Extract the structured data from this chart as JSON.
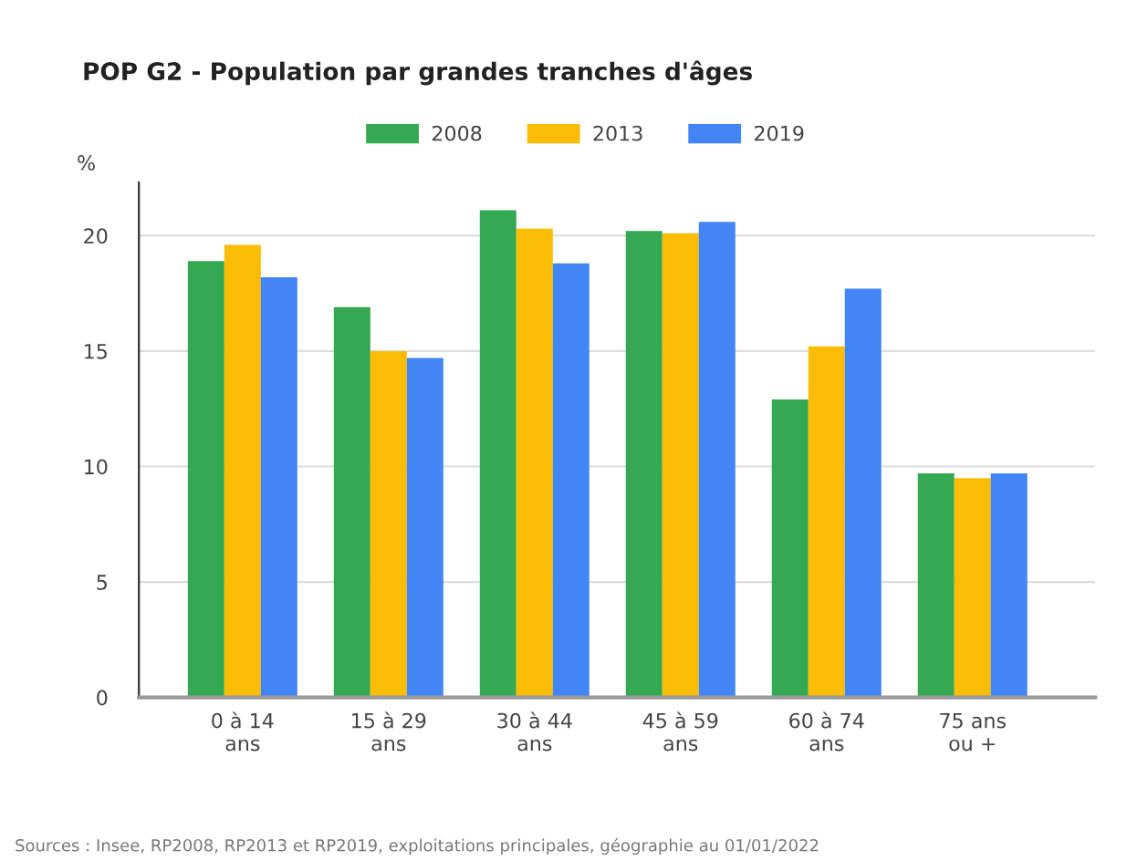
{
  "chart_data": {
    "type": "bar",
    "title": "POP G2 - Population par grandes tranches d'âges",
    "ylabel": "%",
    "categories": [
      "0 à 14\nans",
      "15 à 29\nans",
      "30 à 44\nans",
      "45 à 59\nans",
      "60 à 74\nans",
      "75 ans\nou +"
    ],
    "series": [
      {
        "name": "2008",
        "color": "#34a853",
        "values": [
          18.9,
          16.9,
          21.1,
          20.2,
          12.9,
          9.7
        ]
      },
      {
        "name": "2013",
        "color": "#fbbc04",
        "values": [
          19.6,
          15.0,
          20.3,
          20.1,
          15.2,
          9.5
        ]
      },
      {
        "name": "2019",
        "color": "#4285f4",
        "values": [
          18.2,
          14.7,
          18.8,
          20.6,
          17.7,
          9.7
        ]
      }
    ],
    "ylim": [
      0,
      22.3
    ],
    "yticks": [
      0,
      5,
      10,
      15,
      20
    ],
    "grid": "y",
    "legend": "top",
    "annotations": [
      "Sources : Insee, RP2008, RP2013 et RP2019, exploitations principales, géographie au 01/01/2022"
    ]
  }
}
